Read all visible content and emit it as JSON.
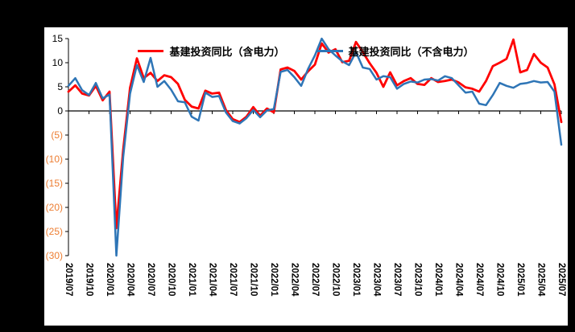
{
  "canvas": {
    "background_color": "#000000",
    "plot_background_color": "#FFFFFF"
  },
  "legend": [
    {
      "label": "基建投资同比（含电力）",
      "color": "#FF0000"
    },
    {
      "label": "基建投资同比（不含电力）",
      "color": "#2E75B6"
    }
  ],
  "chart_data": {
    "type": "line",
    "title": "",
    "xlabel": "",
    "ylabel": "",
    "ylim": [
      -30,
      15
    ],
    "yticks": [
      15,
      10,
      5,
      0,
      -5,
      -10,
      -15,
      -20,
      -25,
      -30
    ],
    "ytick_labels": [
      "15",
      "10",
      "5",
      "0",
      "(5)",
      "(10)",
      "(15)",
      "(20)",
      "(25)",
      "(30)"
    ],
    "negative_tick_color": "#ED7D31",
    "positive_tick_color": "#000000",
    "grid": false,
    "legend_position": "top",
    "x_tick_every": 3,
    "x_tick_labels": [
      "2019/07",
      "2019/10",
      "2020/01",
      "2020/04",
      "2020/07",
      "2020/10",
      "2021/01",
      "2021/04",
      "2021/07",
      "2021/10",
      "2022/01",
      "2022/04",
      "2022/07",
      "2022/10",
      "2023/01",
      "2023/04",
      "2023/07",
      "2023/10",
      "2024/01",
      "2024/04",
      "2024/07",
      "2024/10",
      "2025/01",
      "2025/04",
      "2025/07"
    ],
    "x": [
      "2019/07",
      "2019/08",
      "2019/09",
      "2019/10",
      "2019/11",
      "2019/12",
      "2020/01",
      "2020/02",
      "2020/03",
      "2020/04",
      "2020/05",
      "2020/06",
      "2020/07",
      "2020/08",
      "2020/09",
      "2020/10",
      "2020/11",
      "2020/12",
      "2021/01",
      "2021/02",
      "2021/03",
      "2021/04",
      "2021/05",
      "2021/06",
      "2021/07",
      "2021/08",
      "2021/09",
      "2021/10",
      "2021/11",
      "2021/12",
      "2022/01",
      "2022/02",
      "2022/03",
      "2022/04",
      "2022/05",
      "2022/06",
      "2022/07",
      "2022/08",
      "2022/09",
      "2022/10",
      "2022/11",
      "2022/12",
      "2023/01",
      "2023/02",
      "2023/03",
      "2023/04",
      "2023/05",
      "2023/06",
      "2023/07",
      "2023/08",
      "2023/09",
      "2023/10",
      "2023/11",
      "2023/12",
      "2024/01",
      "2024/02",
      "2024/03",
      "2024/04",
      "2024/05",
      "2024/06",
      "2024/07",
      "2024/08",
      "2024/09",
      "2024/10",
      "2024/11",
      "2024/12",
      "2025/01",
      "2025/02",
      "2025/03",
      "2025/04",
      "2025/05",
      "2025/06",
      "2025/07"
    ],
    "series": [
      {
        "name": "基建投资同比（含电力）",
        "color": "#FF0000",
        "values": [
          4.0,
          5.3,
          3.6,
          3.2,
          5.2,
          2.2,
          4.0,
          -24.3,
          -8.0,
          4.8,
          10.9,
          6.8,
          7.9,
          6.2,
          7.4,
          7.0,
          5.6,
          2.3,
          0.9,
          0.5,
          4.2,
          3.6,
          3.8,
          0.2,
          -1.7,
          -2.3,
          -1.2,
          0.8,
          -1.0,
          0.5,
          -0.3,
          8.6,
          9.0,
          8.3,
          6.5,
          8.2,
          9.6,
          14.0,
          12.1,
          12.8,
          10.1,
          10.4,
          14.3,
          12.2,
          9.9,
          7.9,
          5.0,
          8.0,
          5.3,
          6.2,
          6.8,
          5.6,
          5.4,
          6.8,
          6.0,
          6.2,
          6.5,
          5.9,
          4.9,
          4.6,
          4.0,
          6.2,
          9.3,
          10.0,
          10.8,
          14.8,
          8.0,
          8.5,
          11.8,
          10.0,
          9.0,
          5.5,
          -2.3
        ]
      },
      {
        "name": "基建投资同比（不含电力）",
        "color": "#2E75B6",
        "values": [
          5.2,
          6.8,
          4.3,
          3.3,
          5.8,
          2.6,
          3.4,
          -30.0,
          -9.5,
          3.6,
          9.5,
          6.0,
          11.0,
          5.0,
          6.2,
          4.4,
          2.0,
          1.8,
          -1.2,
          -2.0,
          3.8,
          2.9,
          3.1,
          -0.3,
          -2.1,
          -2.6,
          -1.5,
          0.2,
          -1.3,
          0.1,
          0.4,
          8.1,
          8.5,
          7.0,
          5.2,
          8.7,
          11.5,
          15.0,
          12.8,
          11.5,
          10.3,
          9.5,
          12.2,
          9.0,
          8.7,
          6.5,
          7.2,
          7.0,
          4.6,
          5.6,
          6.1,
          5.9,
          6.5,
          6.6,
          6.3,
          7.2,
          6.8,
          5.3,
          3.8,
          4.0,
          1.5,
          1.2,
          3.3,
          5.8,
          5.2,
          4.8,
          5.6,
          5.8,
          6.2,
          5.9,
          6.0,
          4.0,
          -7.0
        ]
      }
    ]
  }
}
